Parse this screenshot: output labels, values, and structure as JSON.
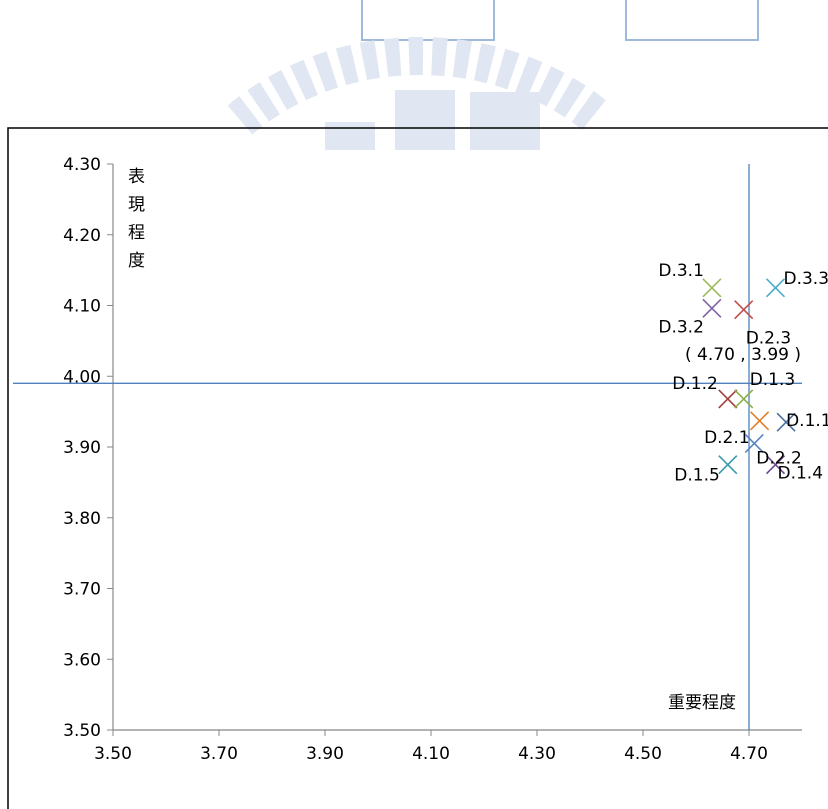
{
  "chart_data": {
    "type": "scatter",
    "xlabel": "重要程度",
    "ylabel": "表現程度",
    "xlim": [
      3.5,
      4.8
    ],
    "ylim": [
      3.5,
      4.3
    ],
    "x_ticks": [
      "3.50",
      "3.70",
      "3.90",
      "4.10",
      "4.30",
      "4.50",
      "4.70"
    ],
    "y_ticks": [
      "4.30",
      "4.20",
      "4.10",
      "4.00",
      "3.90",
      "3.80",
      "3.70",
      "3.60",
      "3.50"
    ],
    "mean_point": {
      "x": 4.7,
      "y": 3.99,
      "label": "( 4.70 , 3.99 )"
    },
    "points": [
      {
        "label": "D.1.1",
        "x": 4.77,
        "y": 3.935,
        "color": "#4a6fa5"
      },
      {
        "label": "D.1.2",
        "x": 4.66,
        "y": 3.968,
        "color": "#a0413c"
      },
      {
        "label": "D.1.3",
        "x": 4.69,
        "y": 3.968,
        "color": "#8ab04a"
      },
      {
        "label": "D.1.4",
        "x": 4.75,
        "y": 3.875,
        "color": "#6a4a8c"
      },
      {
        "label": "D.1.5",
        "x": 4.66,
        "y": 3.875,
        "color": "#3a9aa8"
      },
      {
        "label": "D.2.1",
        "x": 4.72,
        "y": 3.937,
        "color": "#e0802a"
      },
      {
        "label": "D.2.2",
        "x": 4.71,
        "y": 3.905,
        "color": "#5a86c0"
      },
      {
        "label": "D.2.3",
        "x": 4.69,
        "y": 4.094,
        "color": "#c0504d"
      },
      {
        "label": "D.3.1",
        "x": 4.63,
        "y": 4.125,
        "color": "#9bbb59"
      },
      {
        "label": "D.3.2",
        "x": 4.63,
        "y": 4.096,
        "color": "#8064a2"
      },
      {
        "label": "D.3.3",
        "x": 4.75,
        "y": 4.125,
        "color": "#4bacc6"
      }
    ],
    "colors": {
      "axis": "#888888",
      "reference": "#4f81bd",
      "watermark": "#c9d3ea"
    }
  }
}
